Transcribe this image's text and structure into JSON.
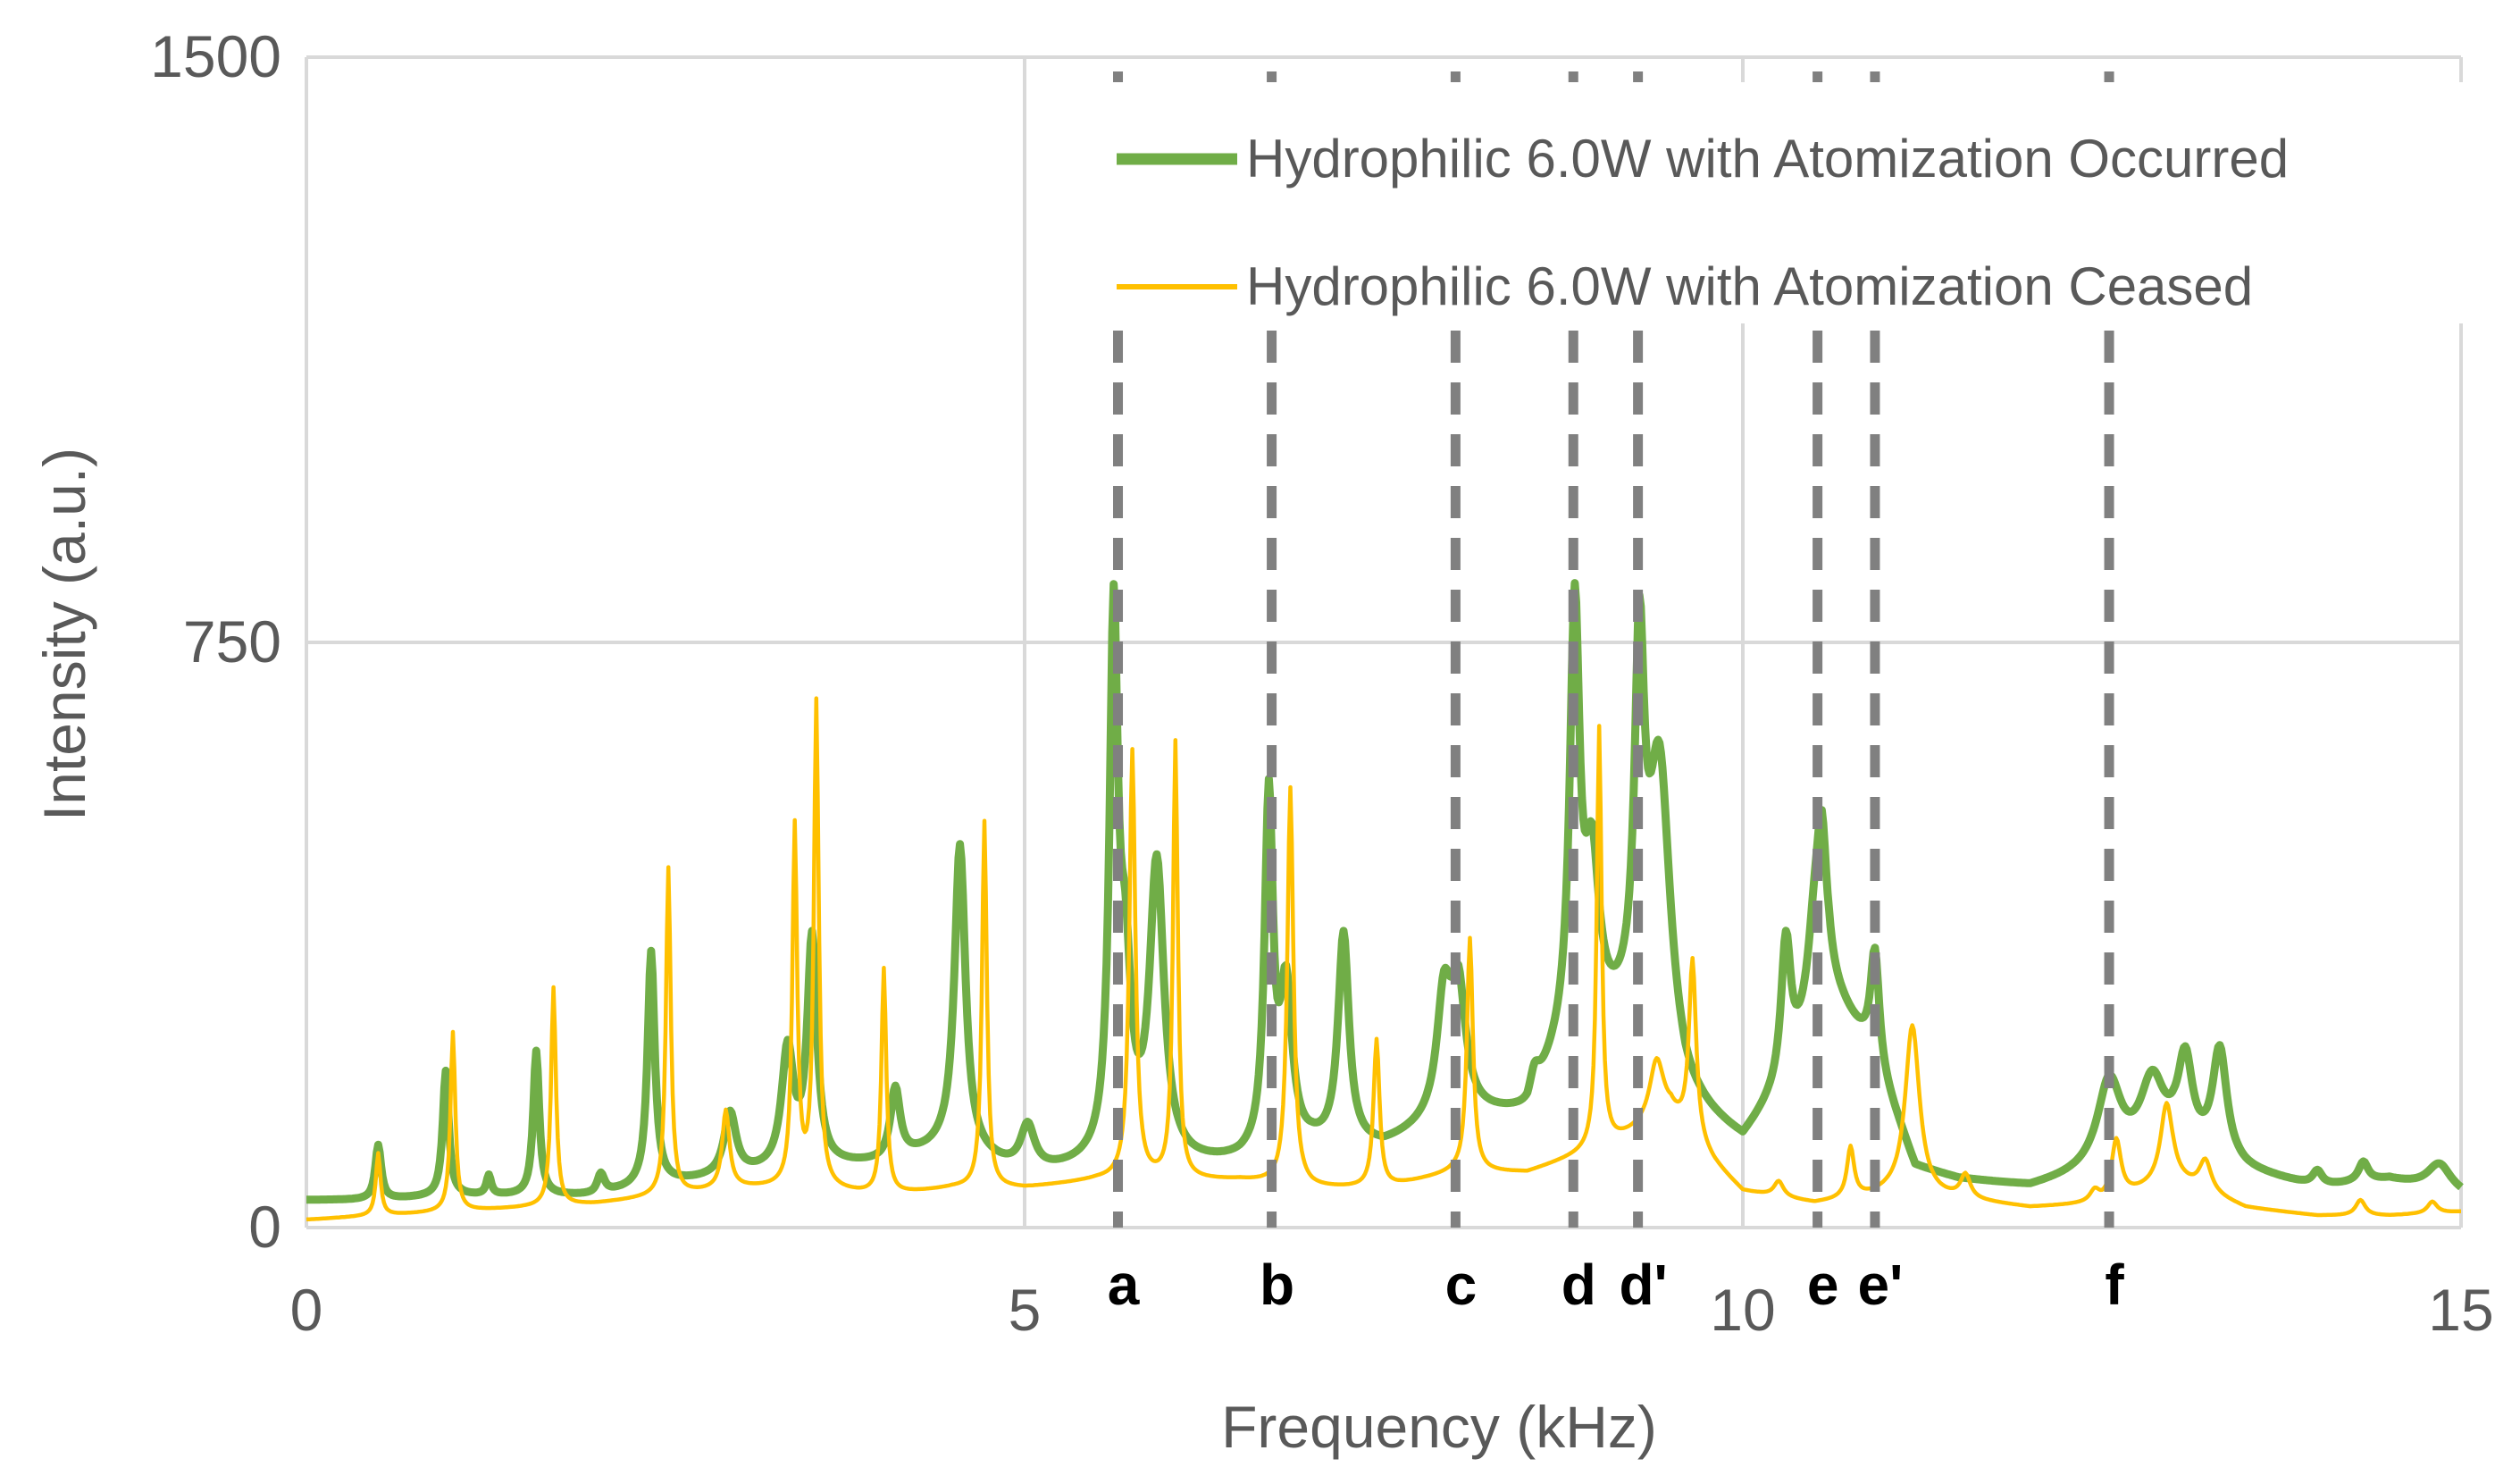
{
  "chart_data": {
    "type": "line",
    "title": "",
    "xlabel": "Frequency (kHz)",
    "ylabel": "Intensity (a.u.)",
    "xlim": [
      0,
      15
    ],
    "ylim": [
      0,
      1500
    ],
    "x_ticks": [
      0,
      5,
      10,
      15
    ],
    "x_tick_labels": [
      "0",
      "5",
      "10",
      "15"
    ],
    "y_ticks": [
      0,
      750,
      1500
    ],
    "y_tick_labels": [
      "0",
      "750",
      "1500"
    ],
    "grid": true,
    "legend_position": "top-right",
    "colors": {
      "occurred": "#70AD47",
      "ceased": "#FFC000",
      "marker": "#808080",
      "grid": "#D9D9D9",
      "axis_text": "#595959"
    },
    "markers": [
      {
        "label": "a",
        "x": 5.65
      },
      {
        "label": "b",
        "x": 6.72
      },
      {
        "label": "c",
        "x": 8.0
      },
      {
        "label": "d",
        "x": 8.82
      },
      {
        "label": "d'",
        "x": 9.27
      },
      {
        "label": "e",
        "x": 10.52
      },
      {
        "label": "e'",
        "x": 10.92
      },
      {
        "label": "f",
        "x": 12.55
      }
    ],
    "series": [
      {
        "name": "Hydrophilic 6.0W with Atomization Occurred",
        "color": "#70AD47",
        "width": "thick",
        "baseline": [
          [
            0,
            35
          ],
          [
            0.5,
            35
          ],
          [
            1,
            40
          ],
          [
            2,
            40
          ],
          [
            2.5,
            55
          ],
          [
            3,
            65
          ],
          [
            3.5,
            75
          ],
          [
            4,
            80
          ],
          [
            4.5,
            100
          ],
          [
            5,
            65
          ],
          [
            5.5,
            75
          ],
          [
            6,
            75
          ],
          [
            6.5,
            80
          ],
          [
            7,
            100
          ],
          [
            7.5,
            100
          ],
          [
            8,
            140
          ],
          [
            8.5,
            140
          ],
          [
            8.8,
            240
          ],
          [
            9.3,
            250
          ],
          [
            9.6,
            150
          ],
          [
            10,
            105
          ],
          [
            10.3,
            180
          ],
          [
            10.6,
            300
          ],
          [
            10.9,
            220
          ],
          [
            11.2,
            75
          ],
          [
            11.5,
            60
          ],
          [
            12,
            50
          ],
          [
            12.5,
            70
          ],
          [
            13,
            100
          ],
          [
            13.5,
            70
          ],
          [
            14,
            50
          ],
          [
            14.5,
            60
          ],
          [
            15,
            40
          ]
        ],
        "peaks": [
          [
            0.5,
            70,
            0.025
          ],
          [
            0.97,
            160,
            0.025
          ],
          [
            1.27,
            25,
            0.02
          ],
          [
            1.6,
            185,
            0.025
          ],
          [
            2.05,
            25,
            0.03
          ],
          [
            2.4,
            300,
            0.03
          ],
          [
            2.95,
            80,
            0.05
          ],
          [
            3.35,
            150,
            0.05
          ],
          [
            3.52,
            290,
            0.04
          ],
          [
            4.1,
            90,
            0.04
          ],
          [
            4.55,
            390,
            0.045
          ],
          [
            5.02,
            60,
            0.06
          ],
          [
            5.62,
            670,
            0.035
          ],
          [
            5.7,
            220,
            0.05
          ],
          [
            5.92,
            380,
            0.06
          ],
          [
            6.7,
            450,
            0.035
          ],
          [
            6.82,
            200,
            0.05
          ],
          [
            7.22,
            270,
            0.045
          ],
          [
            7.92,
            150,
            0.06
          ],
          [
            8.02,
            150,
            0.06
          ],
          [
            8.55,
            30,
            0.04
          ],
          [
            8.83,
            530,
            0.04
          ],
          [
            8.95,
            200,
            0.06
          ],
          [
            9.28,
            440,
            0.04
          ],
          [
            9.42,
            370,
            0.09
          ],
          [
            10.3,
            180,
            0.04
          ],
          [
            10.5,
            110,
            0.06
          ],
          [
            10.55,
            180,
            0.04
          ],
          [
            10.92,
            140,
            0.035
          ],
          [
            12.55,
            110,
            0.1
          ],
          [
            12.85,
            90,
            0.1
          ],
          [
            13.08,
            110,
            0.06
          ],
          [
            13.32,
            140,
            0.06
          ],
          [
            14.0,
            20,
            0.04
          ],
          [
            14.32,
            25,
            0.04
          ],
          [
            14.85,
            35,
            0.1
          ]
        ]
      },
      {
        "name": "Hydrophilic 6.0W with Atomization Ceased",
        "color": "#FFC000",
        "width": "thin",
        "baseline": [
          [
            0,
            10
          ],
          [
            0.5,
            15
          ],
          [
            1,
            20
          ],
          [
            2,
            30
          ],
          [
            2.5,
            40
          ],
          [
            3,
            50
          ],
          [
            3.5,
            50
          ],
          [
            4,
            40
          ],
          [
            4.5,
            50
          ],
          [
            5,
            50
          ],
          [
            5.5,
            60
          ],
          [
            6,
            60
          ],
          [
            6.5,
            60
          ],
          [
            7,
            50
          ],
          [
            7.5,
            50
          ],
          [
            8,
            70
          ],
          [
            8.5,
            70
          ],
          [
            9,
            100
          ],
          [
            9.5,
            140
          ],
          [
            9.8,
            80
          ],
          [
            10,
            45
          ],
          [
            10.5,
            30
          ],
          [
            11,
            40
          ],
          [
            11.5,
            35
          ],
          [
            12,
            25
          ],
          [
            12.5,
            30
          ],
          [
            13,
            60
          ],
          [
            13.5,
            25
          ],
          [
            14,
            15
          ],
          [
            14.5,
            15
          ],
          [
            15,
            20
          ]
        ],
        "peaks": [
          [
            0.5,
            80,
            0.02
          ],
          [
            1.02,
            230,
            0.02
          ],
          [
            1.72,
            280,
            0.02
          ],
          [
            2.52,
            420,
            0.02
          ],
          [
            2.92,
            100,
            0.03
          ],
          [
            3.4,
            460,
            0.02
          ],
          [
            3.55,
            620,
            0.02
          ],
          [
            4.02,
            290,
            0.02
          ],
          [
            4.72,
            470,
            0.02
          ],
          [
            5.75,
            550,
            0.025
          ],
          [
            6.05,
            560,
            0.02
          ],
          [
            6.85,
            510,
            0.025
          ],
          [
            7.45,
            190,
            0.025
          ],
          [
            8.1,
            300,
            0.025
          ],
          [
            9.0,
            540,
            0.02
          ],
          [
            9.4,
            80,
            0.06
          ],
          [
            9.65,
            230,
            0.03
          ],
          [
            10.25,
            20,
            0.04
          ],
          [
            10.75,
            65,
            0.03
          ],
          [
            11.18,
            220,
            0.06
          ],
          [
            11.55,
            30,
            0.04
          ],
          [
            12.45,
            15,
            0.04
          ],
          [
            12.6,
            75,
            0.04
          ],
          [
            12.95,
            100,
            0.05
          ],
          [
            13.22,
            40,
            0.05
          ],
          [
            14.3,
            20,
            0.04
          ],
          [
            14.8,
            15,
            0.04
          ]
        ]
      }
    ]
  }
}
